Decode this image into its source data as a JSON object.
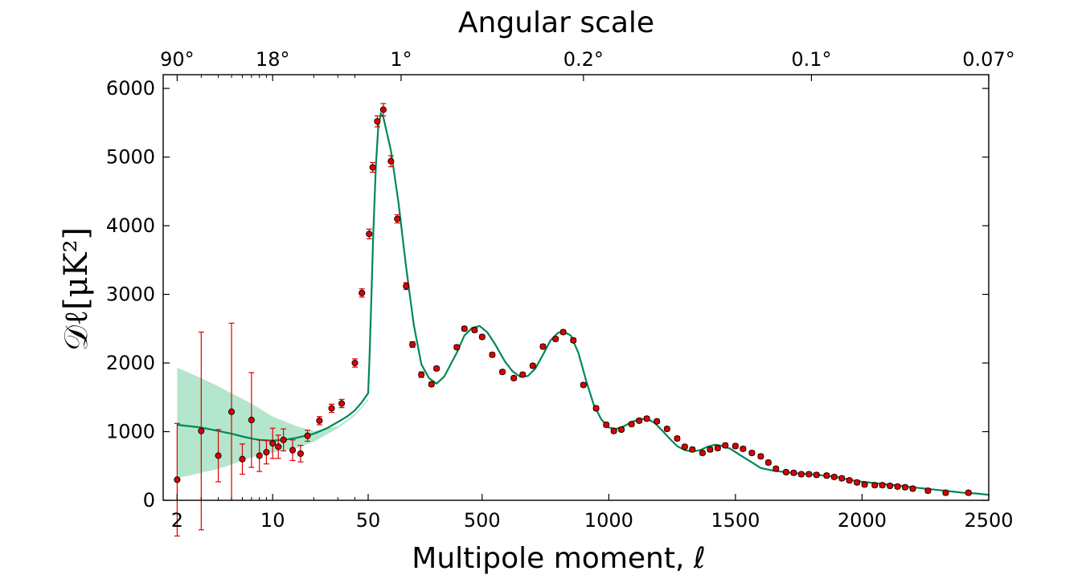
{
  "chart_data": {
    "type": "scatter",
    "title": "Angular scale",
    "xlabel": "Multipole moment, ℓ",
    "ylabel": "𝒟ℓ[μK²]",
    "xlim": [
      1.58,
      2500
    ],
    "ylim": [
      0,
      6200
    ],
    "x_scale": "log for ℓ < 50, linear for ℓ ≥ 50",
    "xticks": [
      2,
      10,
      50,
      500,
      1000,
      1500,
      2000,
      2500
    ],
    "xtick_labels": [
      "2",
      "10",
      "50",
      "500",
      "1000",
      "1500",
      "2000",
      "2500"
    ],
    "yticks": [
      0,
      1000,
      2000,
      3000,
      4000,
      5000,
      6000
    ],
    "ytick_labels": [
      "0",
      "1000",
      "2000",
      "3000",
      "4000",
      "5000",
      "6000"
    ],
    "top_axis": {
      "label": "Angular scale",
      "tick_labels": [
        "90°",
        "18°",
        "1°",
        "0.2°",
        "0.1°",
        "0.07°"
      ],
      "tick_multipoles": [
        2,
        10,
        180,
        900,
        1800,
        2500
      ]
    },
    "grid": false,
    "legend": "none",
    "colors": {
      "points": "#dd0000",
      "errorbars": "#dd0000",
      "model": "#008855",
      "band": "#99ddbb"
    },
    "series": [
      {
        "x": [
          2,
          3,
          4,
          5,
          6,
          7,
          8,
          9,
          10,
          11,
          12,
          14,
          16,
          18,
          22,
          27,
          32,
          40,
          45,
          54,
          68,
          86,
          110,
          140,
          165,
          200,
          225,
          260,
          300,
          320,
          400,
          430,
          470,
          500,
          540,
          580,
          625,
          660,
          700,
          740,
          790,
          820,
          860,
          900,
          950,
          990,
          1020,
          1050,
          1090,
          1120,
          1150,
          1190,
          1230,
          1270,
          1300,
          1330,
          1370,
          1400,
          1430,
          1460,
          1500,
          1530,
          1565,
          1600,
          1630,
          1660,
          1700,
          1730,
          1760,
          1790,
          1820,
          1860,
          1890,
          1920,
          1950,
          1980,
          2010,
          2050,
          2080,
          2110,
          2140,
          2170,
          2200,
          2260,
          2330,
          2420
        ],
        "y": [
          300,
          1010,
          650,
          1290,
          600,
          1170,
          650,
          700,
          830,
          780,
          880,
          730,
          680,
          940,
          1160,
          1340,
          1410,
          2000,
          3020,
          3880,
          4850,
          5520,
          5690,
          4940,
          4100,
          3120,
          2270,
          1830,
          1690,
          1920,
          2230,
          2500,
          2480,
          2380,
          2120,
          1870,
          1780,
          1830,
          1960,
          2240,
          2350,
          2450,
          2330,
          1680,
          1340,
          1100,
          1010,
          1030,
          1110,
          1160,
          1190,
          1150,
          1040,
          900,
          780,
          740,
          690,
          740,
          760,
          800,
          790,
          750,
          690,
          640,
          550,
          460,
          410,
          400,
          380,
          380,
          370,
          360,
          340,
          320,
          290,
          260,
          230,
          220,
          220,
          210,
          200,
          190,
          170,
          140,
          110,
          110
        ],
        "err": [
          820,
          1440,
          380,
          1290,
          220,
          690,
          230,
          170,
          220,
          170,
          160,
          150,
          120,
          80,
          60,
          60,
          60,
          60,
          60,
          70,
          70,
          80,
          90,
          80,
          60,
          50,
          40,
          40,
          30,
          30,
          30,
          30,
          30,
          30,
          30,
          30,
          30,
          30,
          30,
          30,
          30,
          30,
          30,
          30,
          30,
          30,
          30,
          30,
          30,
          30,
          30,
          30,
          30,
          30,
          30,
          30,
          30,
          30,
          30,
          30,
          30,
          30,
          30,
          30,
          30,
          30,
          30,
          30,
          30,
          30,
          30,
          30,
          30,
          30,
          30,
          30,
          30,
          30,
          30,
          30,
          30,
          30,
          30,
          30,
          30,
          30
        ]
      }
    ],
    "model_curve": {
      "x": [
        2,
        3,
        4,
        5,
        6,
        7,
        8,
        10,
        12,
        15,
        20,
        25,
        30,
        35,
        40,
        45,
        50,
        55,
        60,
        70,
        80,
        90,
        100,
        110,
        140,
        170,
        200,
        230,
        260,
        290,
        320,
        350,
        400,
        430,
        460,
        490,
        520,
        550,
        590,
        620,
        650,
        680,
        710,
        740,
        770,
        800,
        820,
        850,
        880,
        910,
        940,
        970,
        1000,
        1030,
        1060,
        1090,
        1120,
        1150,
        1180,
        1210,
        1240,
        1270,
        1300,
        1330,
        1360,
        1390,
        1420,
        1450,
        1480,
        1510,
        1540,
        1570,
        1600,
        1650,
        1700,
        1750,
        1800,
        1850,
        1900,
        1950,
        2000,
        2050,
        2100,
        2150,
        2200,
        2250,
        2300,
        2350,
        2400,
        2450,
        2500
      ],
      "y": [
        1100,
        1060,
        1010,
        970,
        930,
        900,
        880,
        870,
        880,
        910,
        970,
        1050,
        1140,
        1220,
        1310,
        1430,
        1560,
        2050,
        2650,
        3860,
        4850,
        5450,
        5630,
        5580,
        5090,
        4330,
        3390,
        2560,
        1980,
        1780,
        1700,
        1800,
        2150,
        2400,
        2510,
        2540,
        2450,
        2280,
        2020,
        1880,
        1800,
        1810,
        1920,
        2120,
        2330,
        2440,
        2460,
        2400,
        2150,
        1750,
        1400,
        1180,
        1060,
        1040,
        1080,
        1140,
        1180,
        1190,
        1130,
        1020,
        900,
        790,
        730,
        710,
        730,
        780,
        810,
        790,
        750,
        680,
        610,
        540,
        470,
        430,
        410,
        390,
        380,
        360,
        340,
        300,
        270,
        250,
        230,
        210,
        190,
        170,
        150,
        130,
        110,
        100,
        80
      ],
      "band_x": [
        2,
        3,
        4,
        5,
        6,
        8,
        10,
        15,
        20,
        30,
        40,
        50
      ],
      "band_low": [
        320,
        400,
        460,
        520,
        580,
        660,
        700,
        760,
        850,
        1050,
        1230,
        1450
      ],
      "band_high": [
        1930,
        1780,
        1660,
        1560,
        1480,
        1340,
        1220,
        1080,
        1010,
        1080,
        1260,
        1480
      ]
    }
  }
}
